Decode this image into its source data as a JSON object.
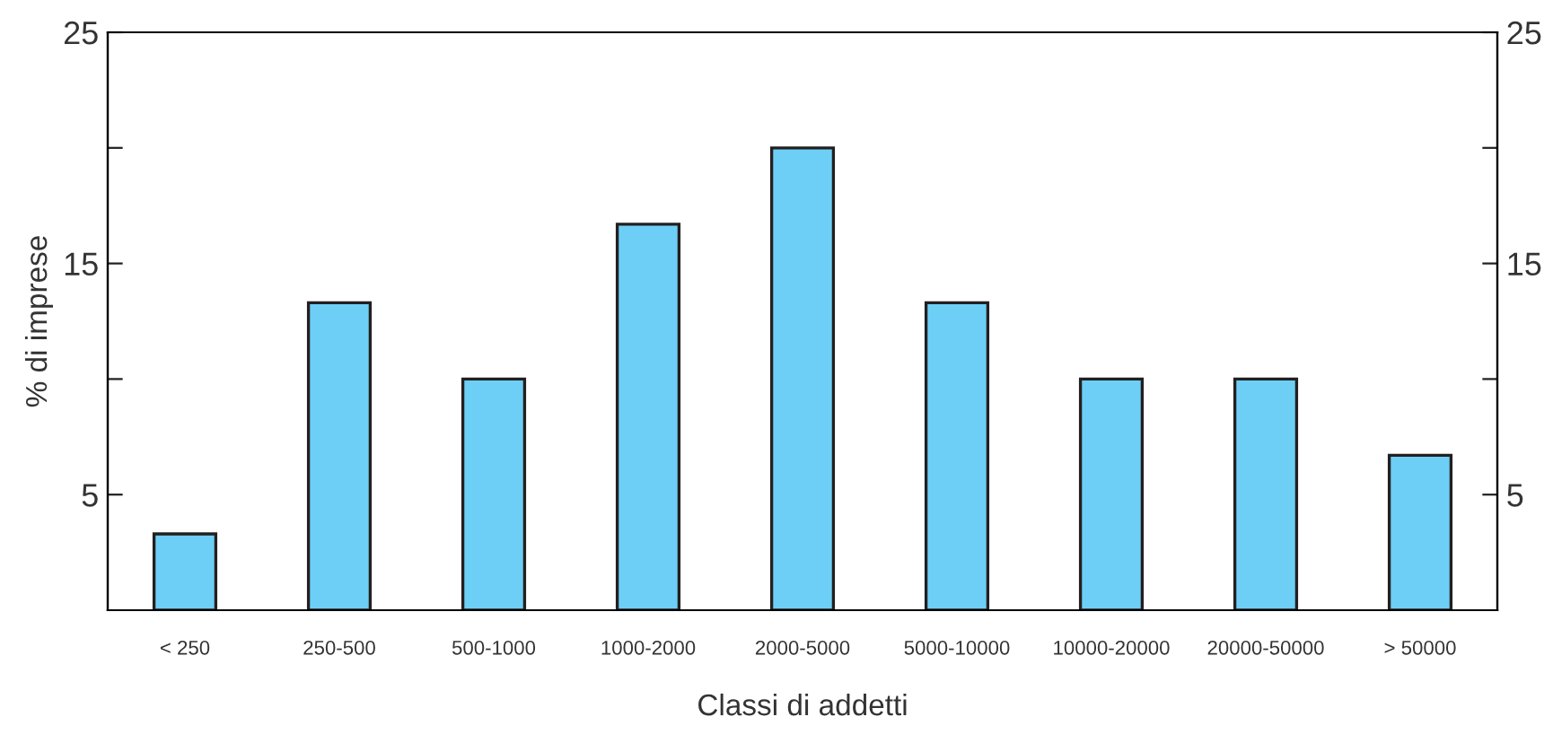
{
  "chart_data": {
    "type": "bar",
    "xlabel": "Classi di addetti",
    "ylabel": "% di imprese",
    "categories": [
      "< 250",
      "250-500",
      "500-1000",
      "1000-2000",
      "2000-5000",
      "5000-10000",
      "10000-20000",
      "20000-50000",
      "> 50000"
    ],
    "values": [
      3.3,
      13.3,
      10,
      16.7,
      20,
      13.3,
      10,
      10,
      6.7
    ],
    "color": "#6dcff6",
    "ylim": [
      0,
      25
    ],
    "yticks": [
      5,
      {
        "value": 10,
        "label": null
      },
      15,
      {
        "value": 20,
        "label": null
      },
      25
    ],
    "y2lim": [
      0,
      25
    ],
    "y2ticks": [
      5,
      {
        "value": 10,
        "label": null
      },
      15,
      {
        "value": 20,
        "label": null
      },
      25
    ],
    "grid": false,
    "legend": false
  }
}
